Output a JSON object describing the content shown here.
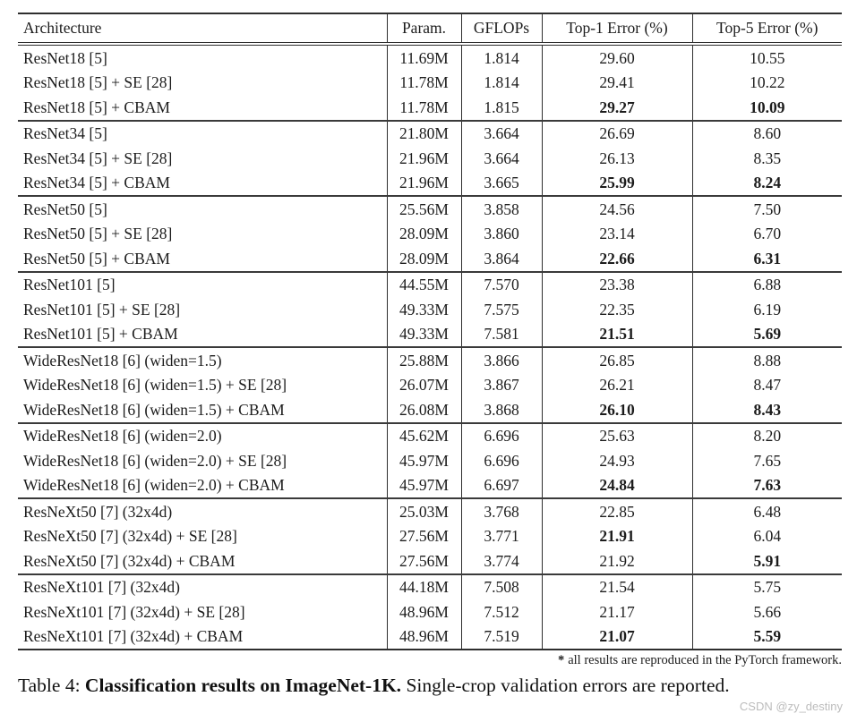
{
  "table": {
    "headers": [
      "Architecture",
      "Param.",
      "GFLOPs",
      "Top-1 Error (%)",
      "Top-5 Error (%)"
    ],
    "groups": [
      {
        "rows": [
          {
            "arch": "ResNet18 [5]",
            "param": "11.69M",
            "gflops": "1.814",
            "top1": "29.60",
            "top5": "10.55",
            "b1": false,
            "b5": false
          },
          {
            "arch": "ResNet18 [5] + SE [28]",
            "param": "11.78M",
            "gflops": "1.814",
            "top1": "29.41",
            "top5": "10.22",
            "b1": false,
            "b5": false
          },
          {
            "arch": "ResNet18 [5] + CBAM",
            "param": "11.78M",
            "gflops": "1.815",
            "top1": "29.27",
            "top5": "10.09",
            "b1": true,
            "b5": true
          }
        ]
      },
      {
        "rows": [
          {
            "arch": "ResNet34 [5]",
            "param": "21.80M",
            "gflops": "3.664",
            "top1": "26.69",
            "top5": "8.60",
            "b1": false,
            "b5": false
          },
          {
            "arch": "ResNet34 [5] + SE [28]",
            "param": "21.96M",
            "gflops": "3.664",
            "top1": "26.13",
            "top5": "8.35",
            "b1": false,
            "b5": false
          },
          {
            "arch": "ResNet34 [5] + CBAM",
            "param": "21.96M",
            "gflops": "3.665",
            "top1": "25.99",
            "top5": "8.24",
            "b1": true,
            "b5": true
          }
        ]
      },
      {
        "rows": [
          {
            "arch": "ResNet50 [5]",
            "param": "25.56M",
            "gflops": "3.858",
            "top1": "24.56",
            "top5": "7.50",
            "b1": false,
            "b5": false
          },
          {
            "arch": "ResNet50 [5] + SE [28]",
            "param": "28.09M",
            "gflops": "3.860",
            "top1": "23.14",
            "top5": "6.70",
            "b1": false,
            "b5": false
          },
          {
            "arch": "ResNet50 [5] + CBAM",
            "param": "28.09M",
            "gflops": "3.864",
            "top1": "22.66",
            "top5": "6.31",
            "b1": true,
            "b5": true
          }
        ]
      },
      {
        "rows": [
          {
            "arch": "ResNet101 [5]",
            "param": "44.55M",
            "gflops": "7.570",
            "top1": "23.38",
            "top5": "6.88",
            "b1": false,
            "b5": false
          },
          {
            "arch": "ResNet101 [5] + SE [28]",
            "param": "49.33M",
            "gflops": "7.575",
            "top1": "22.35",
            "top5": "6.19",
            "b1": false,
            "b5": false
          },
          {
            "arch": "ResNet101 [5] + CBAM",
            "param": "49.33M",
            "gflops": "7.581",
            "top1": "21.51",
            "top5": "5.69",
            "b1": true,
            "b5": true
          }
        ]
      },
      {
        "rows": [
          {
            "arch": "WideResNet18 [6] (widen=1.5)",
            "param": "25.88M",
            "gflops": "3.866",
            "top1": "26.85",
            "top5": "8.88",
            "b1": false,
            "b5": false
          },
          {
            "arch": "WideResNet18 [6] (widen=1.5) + SE [28]",
            "param": "26.07M",
            "gflops": "3.867",
            "top1": "26.21",
            "top5": "8.47",
            "b1": false,
            "b5": false
          },
          {
            "arch": "WideResNet18 [6] (widen=1.5) + CBAM",
            "param": "26.08M",
            "gflops": "3.868",
            "top1": "26.10",
            "top5": "8.43",
            "b1": true,
            "b5": true
          }
        ]
      },
      {
        "rows": [
          {
            "arch": "WideResNet18 [6] (widen=2.0)",
            "param": "45.62M",
            "gflops": "6.696",
            "top1": "25.63",
            "top5": "8.20",
            "b1": false,
            "b5": false
          },
          {
            "arch": "WideResNet18 [6] (widen=2.0) + SE [28]",
            "param": "45.97M",
            "gflops": "6.696",
            "top1": "24.93",
            "top5": "7.65",
            "b1": false,
            "b5": false
          },
          {
            "arch": "WideResNet18 [6] (widen=2.0) + CBAM",
            "param": "45.97M",
            "gflops": "6.697",
            "top1": "24.84",
            "top5": "7.63",
            "b1": true,
            "b5": true
          }
        ]
      },
      {
        "rows": [
          {
            "arch": "ResNeXt50 [7] (32x4d)",
            "param": "25.03M",
            "gflops": "3.768",
            "top1": "22.85",
            "top5": "6.48",
            "b1": false,
            "b5": false
          },
          {
            "arch": "ResNeXt50 [7] (32x4d) + SE [28]",
            "param": "27.56M",
            "gflops": "3.771",
            "top1": "21.91",
            "top5": "6.04",
            "b1": true,
            "b5": false
          },
          {
            "arch": "ResNeXt50 [7] (32x4d) + CBAM",
            "param": "27.56M",
            "gflops": "3.774",
            "top1": "21.92",
            "top5": "5.91",
            "b1": false,
            "b5": true
          }
        ]
      },
      {
        "rows": [
          {
            "arch": "ResNeXt101 [7] (32x4d)",
            "param": "44.18M",
            "gflops": "7.508",
            "top1": "21.54",
            "top5": "5.75",
            "b1": false,
            "b5": false
          },
          {
            "arch": "ResNeXt101 [7] (32x4d) + SE [28]",
            "param": "48.96M",
            "gflops": "7.512",
            "top1": "21.17",
            "top5": "5.66",
            "b1": false,
            "b5": false
          },
          {
            "arch": "ResNeXt101 [7] (32x4d) + CBAM",
            "param": "48.96M",
            "gflops": "7.519",
            "top1": "21.07",
            "top5": "5.59",
            "b1": true,
            "b5": true
          }
        ]
      }
    ]
  },
  "footnote": {
    "marker": "*",
    "text": "all results are reproduced in the PyTorch framework."
  },
  "caption": {
    "prefix": "Table 4: ",
    "bold": "Classification results on ImageNet-1K.",
    "rest": " Single-crop validation errors are reported."
  },
  "watermark": "CSDN @zy_destiny"
}
